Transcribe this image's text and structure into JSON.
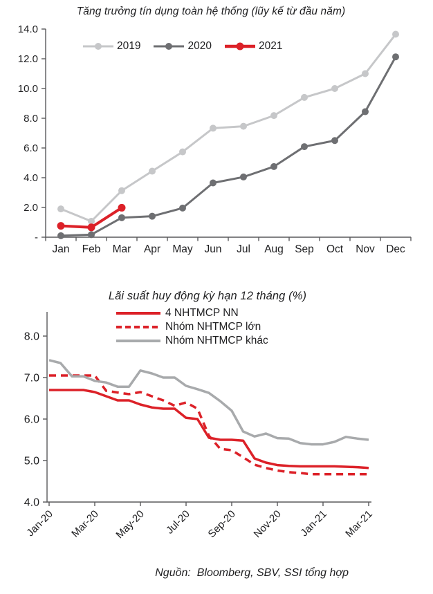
{
  "source_note": "Nguồn:  Bloomberg, SBV, SSI tổng hợp",
  "colors": {
    "axis": "#59595b",
    "text": "#1f1f21",
    "red": "#dc2128",
    "light_gray": "#c6c7c9",
    "dark_gray": "#6e6f72",
    "mid_gray": "#a8aaac"
  },
  "chart_data": [
    {
      "type": "line",
      "title": "Tăng trưởng tín dụng toàn hệ thống (lũy kế từ đầu năm)",
      "xlabel": "",
      "ylabel": "",
      "categories": [
        "Jan",
        "Feb",
        "Mar",
        "Apr",
        "May",
        "Jun",
        "Jul",
        "Aug",
        "Sep",
        "Oct",
        "Nov",
        "Dec"
      ],
      "ylim": [
        0,
        14
      ],
      "ytick_labels": [
        "-",
        "2.0",
        "4.0",
        "6.0",
        "8.0",
        "10.0",
        "12.0",
        "14.0"
      ],
      "grid": false,
      "legend_position": "top-inside",
      "series": [
        {
          "name": "2019",
          "color": "#c6c7c9",
          "width": 3,
          "marker": true,
          "dash": null,
          "values": [
            1.9,
            1.07,
            3.13,
            4.44,
            5.74,
            7.33,
            7.46,
            8.18,
            9.4,
            10.0,
            11.0,
            13.65
          ]
        },
        {
          "name": "2020",
          "color": "#6e6f72",
          "width": 3,
          "marker": true,
          "dash": null,
          "values": [
            0.1,
            0.17,
            1.31,
            1.41,
            1.96,
            3.65,
            4.05,
            4.75,
            6.09,
            6.5,
            8.44,
            12.13
          ]
        },
        {
          "name": "2021",
          "color": "#dc2128",
          "width": 4,
          "marker": true,
          "dash": null,
          "values": [
            0.76,
            0.66,
            1.98
          ]
        }
      ]
    },
    {
      "type": "line",
      "title": "Lãi suất huy động kỳ hạn 12 tháng (%)",
      "xlabel": "",
      "ylabel": "",
      "x_tick_labels": [
        "Jan-20",
        "Mar-20",
        "May-20",
        "Jul-20",
        "Sep-20",
        "Nov-20",
        "Jan-21",
        "Mar-21"
      ],
      "x_points_per_tick_interval": 4,
      "ylim": [
        4,
        8
      ],
      "ytick_labels": [
        "4.0",
        "5.0",
        "6.0",
        "7.0",
        "8.0"
      ],
      "grid": false,
      "legend_position": "top-inside",
      "series": [
        {
          "name": "4 NHTMCP NN",
          "color": "#dc2128",
          "width": 3.5,
          "marker": false,
          "dash": null,
          "values": [
            6.7,
            6.7,
            6.7,
            6.7,
            6.65,
            6.55,
            6.45,
            6.45,
            6.35,
            6.28,
            6.25,
            6.25,
            6.03,
            6.0,
            5.55,
            5.5,
            5.5,
            5.48,
            5.05,
            4.95,
            4.89,
            4.87,
            4.86,
            4.86,
            4.86,
            4.86,
            4.85,
            4.84,
            4.82
          ]
        },
        {
          "name": "Nhóm NHTMCP lớn",
          "color": "#dc2128",
          "width": 3.5,
          "marker": false,
          "dash": "10 7",
          "values": [
            7.05,
            7.05,
            7.05,
            7.05,
            7.05,
            6.68,
            6.64,
            6.6,
            6.65,
            6.55,
            6.45,
            6.32,
            6.4,
            6.25,
            5.6,
            5.28,
            5.25,
            5.08,
            4.9,
            4.82,
            4.76,
            4.72,
            4.7,
            4.67,
            4.67,
            4.67,
            4.67,
            4.67,
            4.67
          ]
        },
        {
          "name": "Nhóm NHTMCP khác",
          "color": "#a8aaac",
          "width": 3.5,
          "marker": false,
          "dash": null,
          "values": [
            7.42,
            7.35,
            7.03,
            7.03,
            6.92,
            6.88,
            6.78,
            6.78,
            7.17,
            7.1,
            7.0,
            7.0,
            6.8,
            6.72,
            6.63,
            6.43,
            6.2,
            5.7,
            5.58,
            5.65,
            5.54,
            5.53,
            5.42,
            5.39,
            5.39,
            5.45,
            5.57,
            5.53,
            5.5
          ]
        }
      ]
    }
  ]
}
